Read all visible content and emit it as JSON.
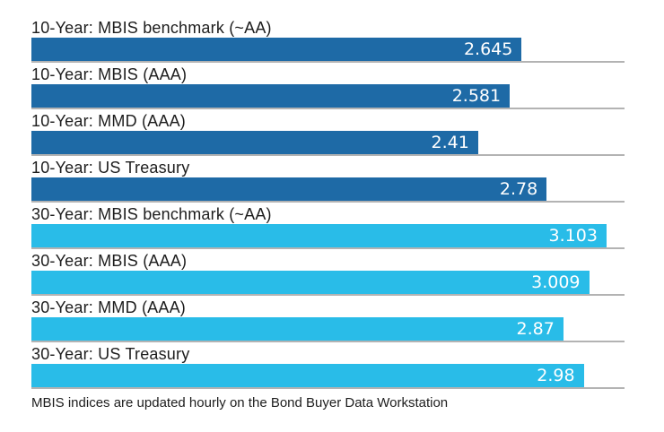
{
  "chart_data": {
    "type": "bar",
    "orientation": "horizontal",
    "title": "",
    "xlabel": "",
    "ylabel": "",
    "xlim": [
      0,
      3.2
    ],
    "grid": false,
    "legend_position": "none",
    "value_label_position": "inside-right",
    "categories": [
      "10-Year: MBIS benchmark (~AA)",
      "10-Year: MBIS (AAA)",
      "10-Year: MMD (AAA)",
      "10-Year: US Treasury",
      "30-Year: MBIS benchmark (~AA)",
      "30-Year: MBIS (AAA)",
      "30-Year: MMD (AAA)",
      "30-Year: US Treasury"
    ],
    "values": [
      2.645,
      2.581,
      2.41,
      2.78,
      3.103,
      3.009,
      2.87,
      2.98
    ],
    "value_labels": [
      "2.645",
      "2.581",
      "2.41",
      "2.78",
      "3.103",
      "3.009",
      "2.87",
      "2.98"
    ],
    "bar_colors": [
      "#1e6aa6",
      "#1e6aa6",
      "#1e6aa6",
      "#1e6aa6",
      "#29bce8",
      "#29bce8",
      "#29bce8",
      "#29bce8"
    ],
    "series_groups": [
      {
        "name": "10-Year",
        "color": "#1e6aa6"
      },
      {
        "name": "30-Year",
        "color": "#29bce8"
      }
    ],
    "footnote": "MBIS indices are updated hourly on the Bond Buyer Data Workstation"
  },
  "colors": {
    "bar_10_year": "#1e6aa6",
    "bar_30_year": "#29bce8",
    "row_separator": "#b3b3b3",
    "label_text": "#1d1d1d",
    "value_text": "#ffffff",
    "background": "#ffffff"
  }
}
